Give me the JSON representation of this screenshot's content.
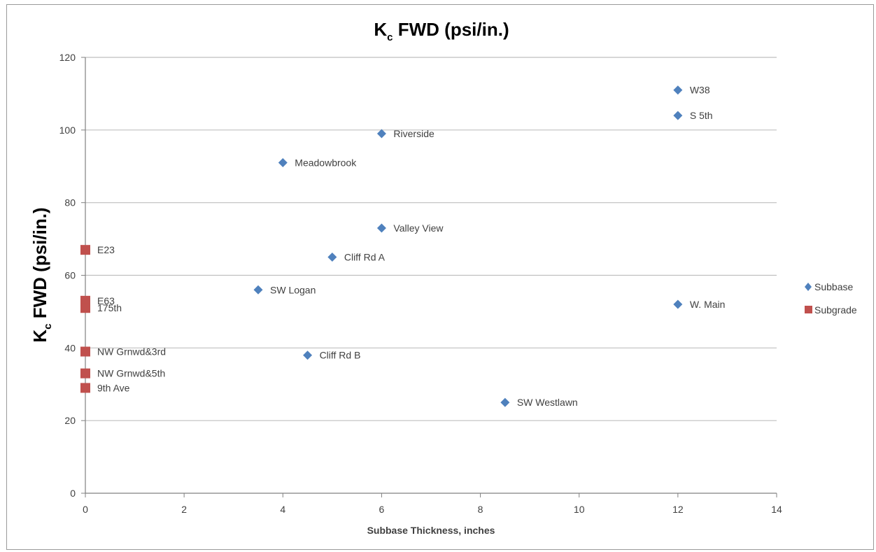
{
  "chart_data": {
    "type": "scatter",
    "title_main": "K",
    "title_sub": "c",
    "title_rest": " FWD (psi/in.)",
    "xlabel": "Subbase Thickness, inches",
    "ylabel_main": "K",
    "ylabel_sub": "c",
    "ylabel_rest": " FWD (psi/in.)",
    "xlim": [
      0,
      14
    ],
    "ylim": [
      0,
      120
    ],
    "xticks": [
      "0",
      "2",
      "4",
      "6",
      "8",
      "10",
      "12",
      "14"
    ],
    "yticks": [
      "0",
      "20",
      "40",
      "60",
      "80",
      "100",
      "120"
    ],
    "grid": "horizontal",
    "legend_position": "right",
    "series": [
      {
        "name": "Subbase",
        "marker": "diamond",
        "color": "#4f81bd",
        "points": [
          {
            "x": 12,
            "y": 111,
            "label": "W38"
          },
          {
            "x": 12,
            "y": 104,
            "label": "S 5th"
          },
          {
            "x": 6,
            "y": 99,
            "label": "Riverside"
          },
          {
            "x": 4,
            "y": 91,
            "label": "Meadowbrook"
          },
          {
            "x": 6,
            "y": 73,
            "label": "Valley View"
          },
          {
            "x": 5,
            "y": 65,
            "label": "Cliff Rd A"
          },
          {
            "x": 3.5,
            "y": 56,
            "label": "SW Logan"
          },
          {
            "x": 12,
            "y": 52,
            "label": "W. Main"
          },
          {
            "x": 4.5,
            "y": 38,
            "label": "Cliff Rd B"
          },
          {
            "x": 8.5,
            "y": 25,
            "label": "SW Westlawn"
          }
        ]
      },
      {
        "name": "Subgrade",
        "marker": "square",
        "color": "#c0504d",
        "points": [
          {
            "x": 0,
            "y": 67,
            "label": "E23"
          },
          {
            "x": 0,
            "y": 53,
            "label": "E63"
          },
          {
            "x": 0,
            "y": 51,
            "label": "175th"
          },
          {
            "x": 0,
            "y": 39,
            "label": "NW Grnwd&3rd"
          },
          {
            "x": 0,
            "y": 33,
            "label": "NW Grnwd&5th"
          },
          {
            "x": 0,
            "y": 29,
            "label": "9th Ave"
          }
        ]
      }
    ]
  }
}
